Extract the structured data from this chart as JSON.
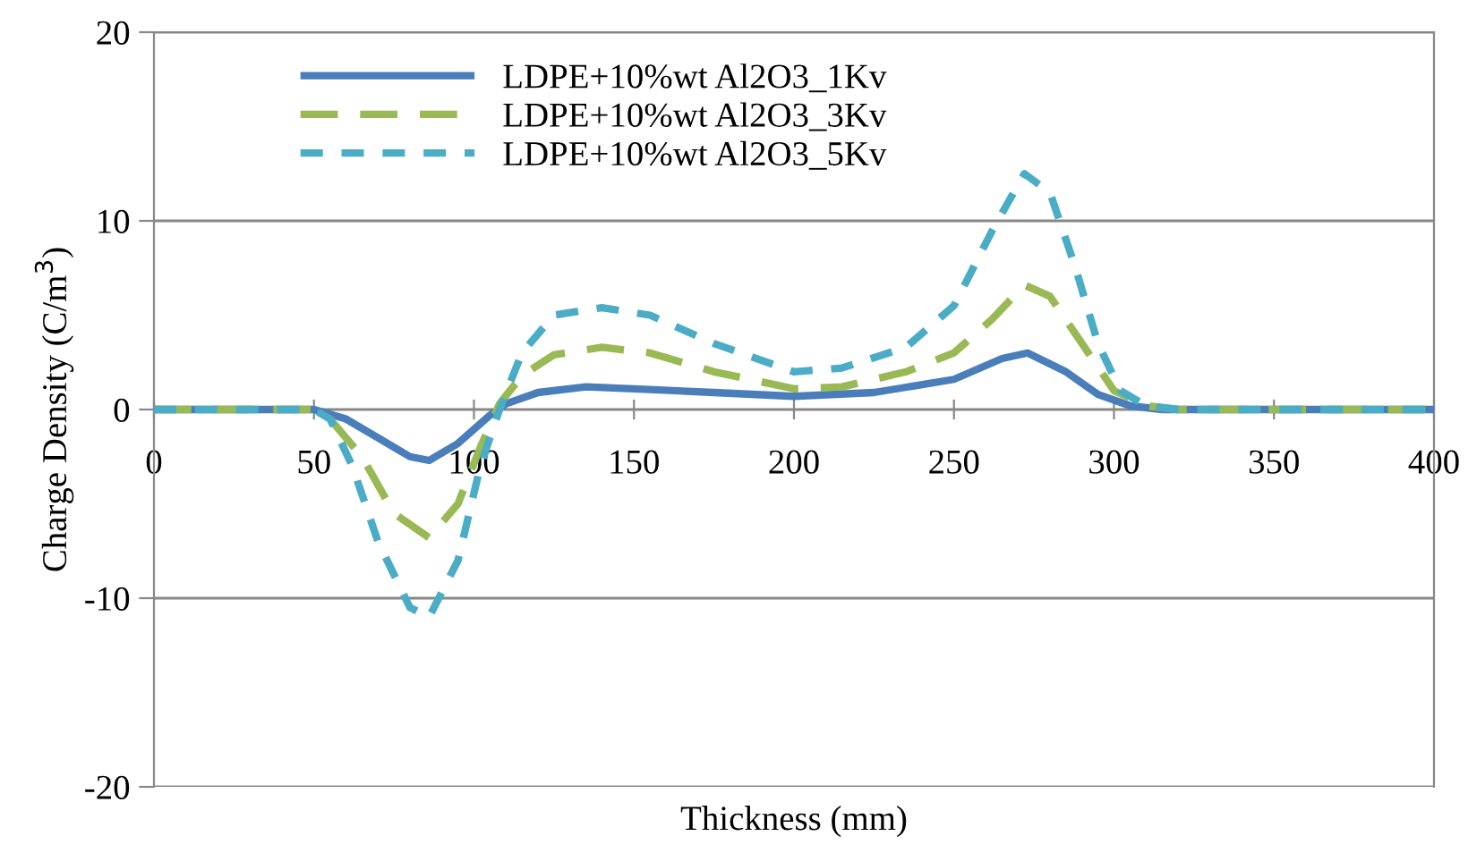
{
  "chart_data": {
    "type": "line",
    "xlabel": "Thickness (mm)",
    "ylabel": "Charge Density (C/m$^{3}$)",
    "xlim": [
      0,
      400
    ],
    "xticks": [
      0,
      50,
      100,
      150,
      200,
      250,
      300,
      350,
      400
    ],
    "ylim": [
      -20,
      20
    ],
    "yticks": [
      -20,
      -10,
      0,
      10,
      20
    ],
    "grid": "y",
    "legend": "top left",
    "marker": "none",
    "series": [
      {
        "name": "LDPE+10%wt Al2O3_1Kv",
        "color": "#4a7ebb",
        "line_style": "solid",
        "x": [
          0,
          40,
          50,
          60,
          70,
          80,
          86,
          95,
          105,
          110,
          120,
          135,
          150,
          175,
          200,
          225,
          250,
          265,
          273,
          285,
          295,
          305,
          315,
          400
        ],
        "values": [
          0,
          0,
          0,
          -0.5,
          -1.5,
          -2.5,
          -2.7,
          -1.8,
          -0.3,
          0.3,
          0.9,
          1.2,
          1.1,
          0.9,
          0.7,
          0.9,
          1.6,
          2.7,
          3.0,
          2.0,
          0.8,
          0.2,
          0,
          0
        ]
      },
      {
        "name": "LDPE+10%wt Al2O3_3Kv",
        "color": "#98b954",
        "line_style": "dashed",
        "x": [
          0,
          40,
          50,
          55,
          65,
          75,
          86,
          95,
          102,
          108,
          115,
          125,
          140,
          155,
          175,
          200,
          215,
          235,
          250,
          262,
          272,
          280,
          290,
          300,
          310,
          320,
          400
        ],
        "values": [
          0,
          0,
          0,
          -0.5,
          -2.5,
          -5.5,
          -6.8,
          -5,
          -2,
          0.3,
          1.8,
          2.9,
          3.3,
          3.0,
          2.0,
          1.1,
          1.2,
          2.0,
          3.0,
          4.8,
          6.6,
          6.0,
          3.5,
          1.0,
          0.2,
          0,
          0
        ]
      },
      {
        "name": "LDPE+10%wt Al2O3_5Kv",
        "color": "#4bacc6",
        "line_style": "dashed",
        "x": [
          0,
          40,
          50,
          55,
          62,
          70,
          80,
          86,
          95,
          102,
          108,
          115,
          125,
          140,
          155,
          175,
          200,
          215,
          235,
          250,
          262,
          272,
          280,
          288,
          295,
          302,
          310,
          320,
          400
        ],
        "values": [
          0,
          0,
          0,
          -0.5,
          -3,
          -7,
          -10.5,
          -11,
          -8,
          -3,
          0,
          3,
          5,
          5.4,
          5.0,
          3.5,
          2.0,
          2.2,
          3.3,
          5.5,
          9.5,
          12.5,
          11.5,
          7.5,
          3.5,
          1.0,
          0.2,
          0,
          0
        ]
      }
    ]
  }
}
